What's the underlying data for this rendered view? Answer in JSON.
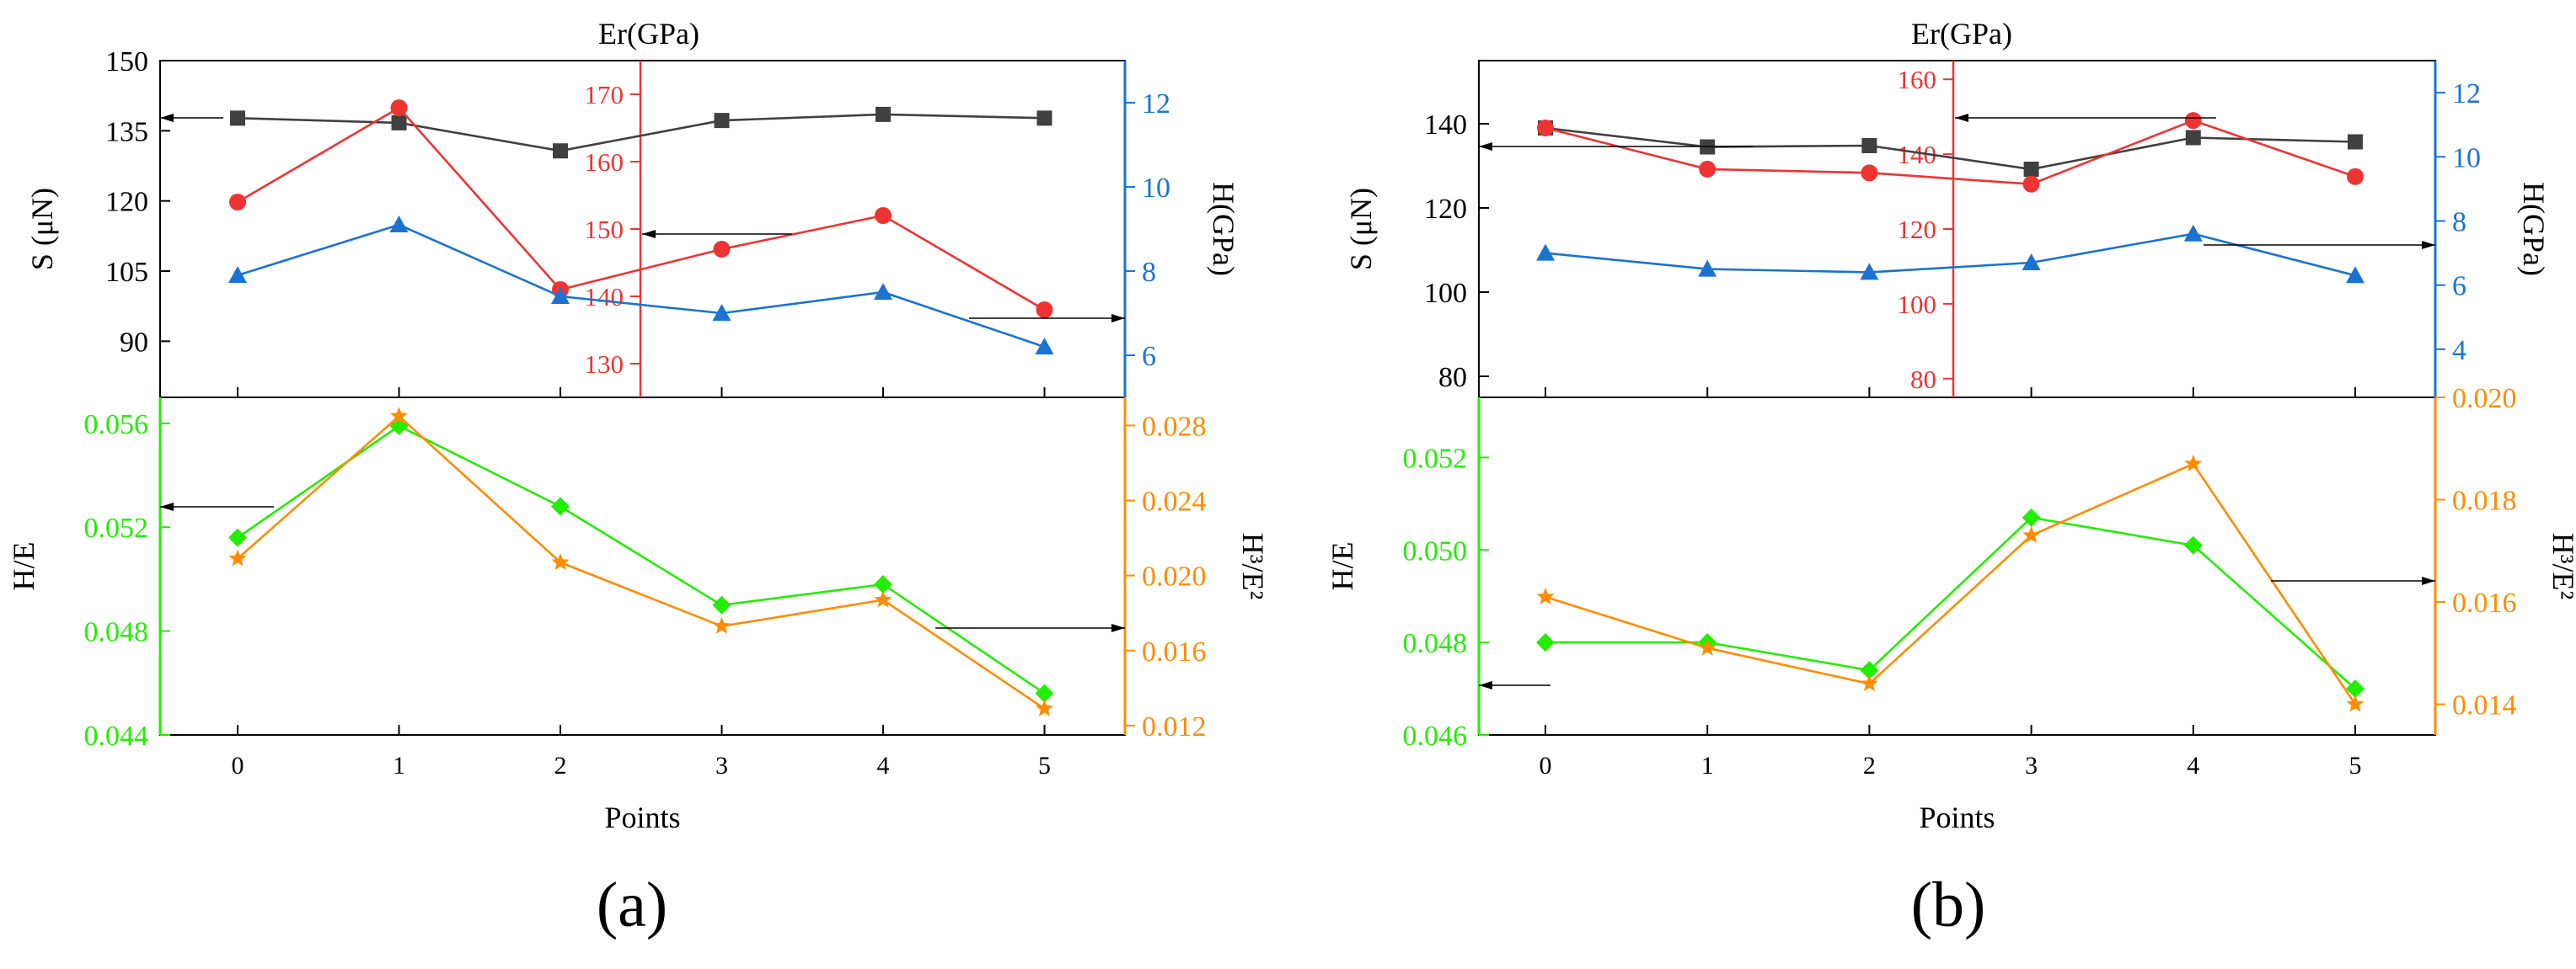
{
  "figure": {
    "panel_labels": [
      "(a)",
      "(b)"
    ]
  },
  "colors": {
    "S": "#404040",
    "Er": "#ee3333",
    "H": "#1a73d1",
    "HE": "#22ee00",
    "H3E2": "#ff8c00",
    "frame": "#000000"
  },
  "chart_data": [
    {
      "panel": "(a)",
      "type": "line",
      "top": {
        "x": [
          0,
          1,
          2,
          3,
          4,
          5
        ],
        "left_axis": {
          "label": "S (μN)",
          "ylim": [
            78,
            150
          ],
          "ticks": [
            "90",
            "105",
            "120",
            "135",
            "150"
          ]
        },
        "er_axis": {
          "label": "Er(GPa)",
          "ylim": [
            125,
            175
          ],
          "ticks": [
            "130",
            "140",
            "150",
            "160",
            "170"
          ],
          "x_position": 2.5
        },
        "right_axis": {
          "label": "H(GPa)",
          "ylim": [
            5,
            13
          ],
          "ticks": [
            "6",
            "8",
            "10",
            "12"
          ]
        },
        "series": [
          {
            "name": "S",
            "axis": "left",
            "marker": "square",
            "values": [
              137.7,
              136.7,
              130.7,
              137.2,
              138.5,
              137.7
            ]
          },
          {
            "name": "Er",
            "axis": "er",
            "marker": "circle",
            "values": [
              154,
              168,
              141,
              147,
              152,
              138
            ]
          },
          {
            "name": "H",
            "axis": "right",
            "marker": "triangle",
            "values": [
              7.9,
              9.1,
              7.4,
              7.0,
              7.5,
              6.2
            ]
          }
        ]
      },
      "bottom": {
        "x": [
          0,
          1,
          2,
          3,
          4,
          5
        ],
        "xlabel": "Points",
        "xticks": [
          "0",
          "1",
          "2",
          "3",
          "4",
          "5"
        ],
        "left_axis": {
          "label": "H/E",
          "ylim": [
            0.044,
            0.057
          ],
          "ticks": [
            "0.044",
            "0.048",
            "0.052",
            "0.056"
          ]
        },
        "right_axis": {
          "label": "H³/E²",
          "ylim": [
            0.0115,
            0.0295
          ],
          "ticks": [
            "0.012",
            "0.016",
            "0.020",
            "0.024",
            "0.028"
          ]
        },
        "series": [
          {
            "name": "H/E",
            "axis": "left",
            "marker": "diamond",
            "values": [
              0.0516,
              0.0559,
              0.0528,
              0.049,
              0.0498,
              0.0456
            ]
          },
          {
            "name": "H³/E²",
            "axis": "right",
            "marker": "star",
            "values": [
              0.0209,
              0.0285,
              0.0207,
              0.0173,
              0.0187,
              0.0129
            ]
          }
        ]
      }
    },
    {
      "panel": "(b)",
      "type": "line",
      "top": {
        "x": [
          0,
          1,
          2,
          3,
          4,
          5
        ],
        "left_axis": {
          "label": "S (μN)",
          "ylim": [
            75,
            155
          ],
          "ticks": [
            "80",
            "100",
            "120",
            "140"
          ]
        },
        "er_axis": {
          "label": "Er(GPa)",
          "ylim": [
            75,
            165
          ],
          "ticks": [
            "80",
            "100",
            "120",
            "140",
            "160"
          ],
          "x_position": 2.5
        },
        "right_axis": {
          "label": "H(GPa)",
          "ylim": [
            2.5,
            13
          ],
          "ticks": [
            "4",
            "6",
            "8",
            "10",
            "12"
          ]
        },
        "series": [
          {
            "name": "S",
            "axis": "left",
            "marker": "square",
            "values": [
              139,
              134.5,
              134.8,
              129.2,
              136.7,
              135.7
            ]
          },
          {
            "name": "Er",
            "axis": "er",
            "marker": "circle",
            "values": [
              147,
              136,
              135,
              132,
              149,
              134
            ]
          },
          {
            "name": "H",
            "axis": "right",
            "marker": "triangle",
            "values": [
              7.0,
              6.5,
              6.4,
              6.7,
              7.6,
              6.3
            ]
          }
        ]
      },
      "bottom": {
        "x": [
          0,
          1,
          2,
          3,
          4,
          5
        ],
        "xlabel": "Points",
        "xticks": [
          "0",
          "1",
          "2",
          "3",
          "4",
          "5"
        ],
        "left_axis": {
          "label": "H/E",
          "ylim": [
            0.046,
            0.0533
          ],
          "ticks": [
            "0.046",
            "0.048",
            "0.050",
            "0.052"
          ]
        },
        "right_axis": {
          "label": "H³/E²",
          "ylim": [
            0.0134,
            0.02
          ],
          "ticks": [
            "0.014",
            "0.016",
            "0.018",
            "0.020"
          ]
        },
        "series": [
          {
            "name": "H/E",
            "axis": "left",
            "marker": "diamond",
            "values": [
              0.048,
              0.048,
              0.0474,
              0.0507,
              0.0501,
              0.047
            ]
          },
          {
            "name": "H³/E²",
            "axis": "right",
            "marker": "star",
            "values": [
              0.0161,
              0.0151,
              0.0144,
              0.0173,
              0.0187,
              0.014
            ]
          }
        ]
      }
    }
  ]
}
